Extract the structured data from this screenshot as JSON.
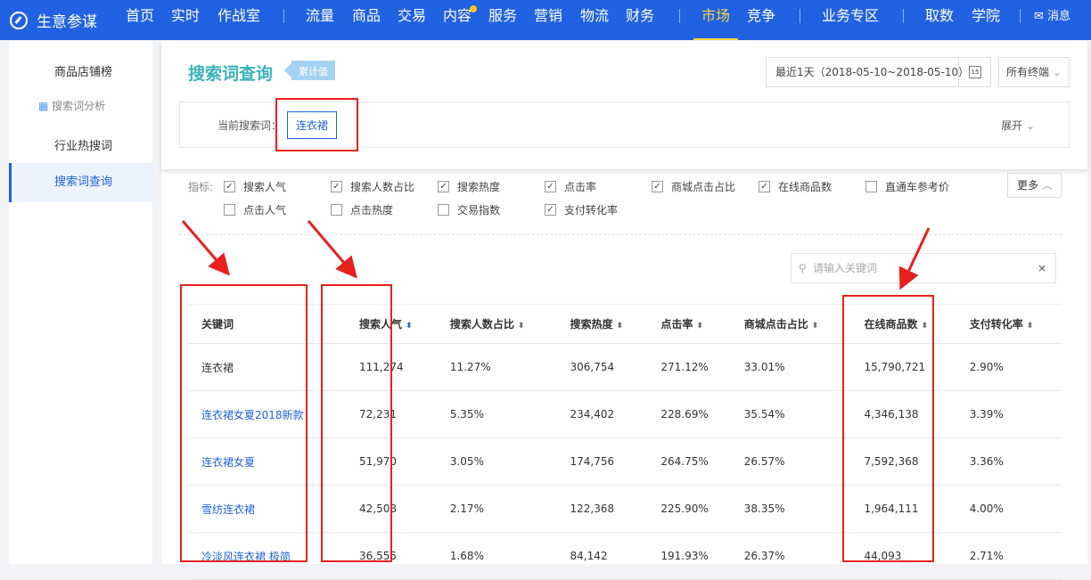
{
  "nav": {
    "logo": "生意参谋",
    "items": [
      "首页",
      "实时",
      "作战室",
      "流量",
      "商品",
      "交易",
      "内容",
      "服务",
      "营销",
      "物流",
      "财务",
      "市场",
      "竞争",
      "业务专区",
      "取数",
      "学院"
    ],
    "active": "市场",
    "message": "消息"
  },
  "sidebar": {
    "items": [
      "商品店铺榜",
      "搜索词分析",
      "行业热搜词",
      "搜索词查询"
    ],
    "selected": "搜索词查询"
  },
  "header": {
    "title": "搜索词查询",
    "tag": "累计值",
    "date_range": "最近1天（2018-05-10~2018-05-10）",
    "calendar_day": "15",
    "terminal": "所有终端"
  },
  "current": {
    "label": "当前搜索词：",
    "keyword": "连衣裙",
    "expand": "展开"
  },
  "metrics": {
    "label": "指标:",
    "items": [
      {
        "label": "搜索人气",
        "checked": true
      },
      {
        "label": "搜索人数占比",
        "checked": true
      },
      {
        "label": "搜索热度",
        "checked": true
      },
      {
        "label": "点击率",
        "checked": true
      },
      {
        "label": "商城点击占比",
        "checked": true
      },
      {
        "label": "在线商品数",
        "checked": true
      },
      {
        "label": "直通车参考价",
        "checked": false
      },
      {
        "label": "点击人气",
        "checked": false
      },
      {
        "label": "点击热度",
        "checked": false
      },
      {
        "label": "交易指数",
        "checked": false
      },
      {
        "label": "支付转化率",
        "checked": true
      }
    ],
    "more": "更多"
  },
  "search": {
    "placeholder": "请输入关键词"
  },
  "table": {
    "columns": [
      "关键词",
      "搜索人气",
      "搜索人数占比",
      "搜索热度",
      "点击率",
      "商城点击占比",
      "在线商品数",
      "支付转化率"
    ],
    "rows": [
      [
        "连衣裙",
        "111,274",
        "11.27%",
        "306,754",
        "271.12%",
        "33.01%",
        "15,790,721",
        "2.90%"
      ],
      [
        "连衣裙女夏2018新款",
        "72,231",
        "5.35%",
        "234,402",
        "228.69%",
        "35.54%",
        "4,346,138",
        "3.39%"
      ],
      [
        "连衣裙女夏",
        "51,970",
        "3.05%",
        "174,756",
        "264.75%",
        "26.57%",
        "7,592,368",
        "3.36%"
      ],
      [
        "雪纺连衣裙",
        "42,508",
        "2.17%",
        "122,368",
        "225.90%",
        "38.35%",
        "1,964,111",
        "4.00%"
      ],
      [
        "冷淡风连衣裙 极简",
        "36,555",
        "1.68%",
        "84,142",
        "191.93%",
        "26.37%",
        "44,093",
        "2.71%"
      ]
    ]
  },
  "colors": {
    "nav": "#2062e1",
    "accent": "#ffd33d",
    "title": "#3bb3b8",
    "annotation": "#e8201e"
  }
}
